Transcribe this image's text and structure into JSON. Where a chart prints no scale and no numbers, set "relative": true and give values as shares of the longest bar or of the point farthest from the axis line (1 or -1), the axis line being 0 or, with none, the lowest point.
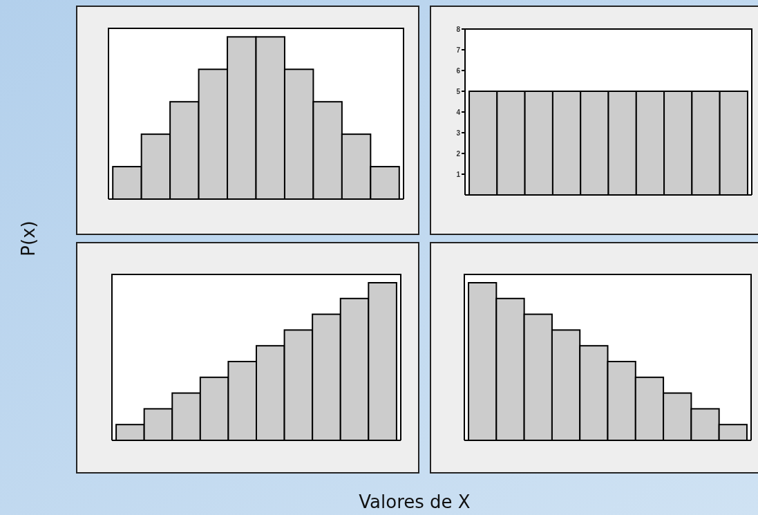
{
  "chart_data": [
    {
      "type": "bar",
      "ylabel": "P(x)",
      "relative": true,
      "categories": [
        null,
        null,
        null,
        null,
        null,
        null,
        null,
        null,
        null,
        null
      ],
      "values": [
        0.2,
        0.4,
        0.6,
        0.8,
        1,
        1,
        0.8,
        0.6,
        0.4,
        0.2
      ],
      "color": "#cccccc"
    },
    {
      "type": "bar",
      "categories": [
        null,
        null,
        null,
        null,
        null,
        null,
        null,
        null,
        null,
        null
      ],
      "values": [
        5,
        5,
        5,
        5,
        5,
        5,
        5,
        5,
        5,
        5
      ],
      "color": "#cccccc",
      "ylim": [
        0,
        8
      ],
      "yticks": [
        1,
        2,
        3,
        4,
        5,
        6,
        7,
        8
      ]
    },
    {
      "type": "bar",
      "xlabel": "Valores de X",
      "relative": true,
      "categories": [
        null,
        null,
        null,
        null,
        null,
        null,
        null,
        null,
        null,
        null
      ],
      "values": [
        0.1,
        0.2,
        0.3,
        0.4,
        0.5,
        0.6,
        0.7,
        0.8,
        0.9,
        1
      ],
      "color": "#cccccc"
    },
    {
      "type": "bar",
      "relative": true,
      "categories": [
        null,
        null,
        null,
        null,
        null,
        null,
        null,
        null,
        null,
        null
      ],
      "values": [
        1,
        0.9,
        0.8,
        0.7,
        0.6,
        0.5,
        0.4,
        0.3,
        0.2,
        0.1
      ],
      "color": "#cccccc"
    }
  ]
}
